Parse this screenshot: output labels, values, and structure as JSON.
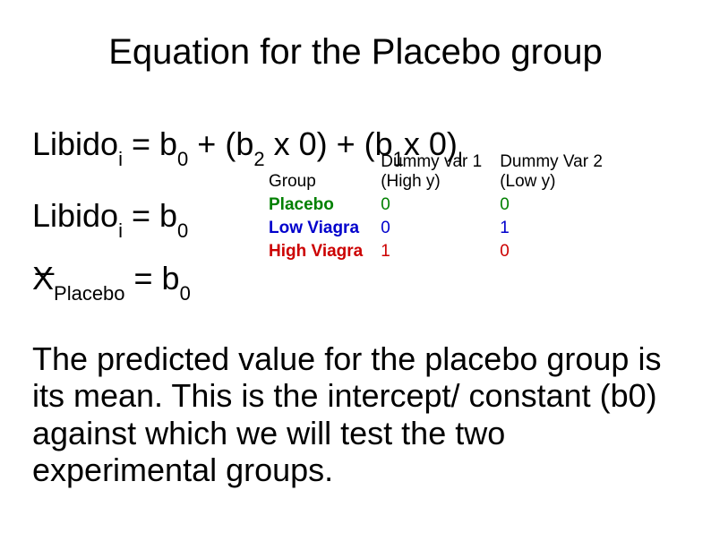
{
  "title": "Equation for the Placebo group",
  "eq1": {
    "t1": "Libido",
    "s1": "i",
    "t2": " = b",
    "s2": "0",
    "t3": " + (b",
    "s3": "2",
    "t4": " x 0) + (b",
    "s4": "1",
    "t5": "x 0)",
    "s5": "I"
  },
  "eq2": {
    "t1": "Libido",
    "s1": "i",
    "t2": " = b",
    "s2": "0"
  },
  "eq3": {
    "bar": "_",
    "t1": "X",
    "s1": "Placebo",
    "t2": " = b",
    "s2": "0"
  },
  "table": {
    "headers": {
      "group": "Group",
      "d1a": "Dummy var 1",
      "d1b": "(High y)",
      "d2a": "Dummy Var 2",
      "d2b": "(Low y)"
    },
    "rows": [
      {
        "label": "Placebo",
        "cls": "placebo",
        "d1": "0",
        "d2": "0"
      },
      {
        "label": "Low Viagra",
        "cls": "lowv",
        "d1": "0",
        "d2": "1"
      },
      {
        "label": "High Viagra",
        "cls": "highv",
        "d1": "1",
        "d2": "0"
      }
    ]
  },
  "body": "The predicted value for the placebo group is its mean. This is the intercept/ constant (b0) against which we will test the two experimental groups.",
  "style": {
    "background": "#ffffff",
    "text_color": "#000000",
    "title_fontsize": 40,
    "equation_fontsize": 36,
    "subscript_fontsize": 22,
    "table_fontsize": 19,
    "body_fontsize": 36,
    "colors": {
      "placebo": "#008000",
      "low_viagra": "#0000cc",
      "high_viagra": "#cc0000"
    }
  }
}
